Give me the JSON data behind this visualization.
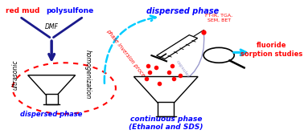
{
  "bg_color": "#ffffff",
  "red_mud_label": "red mud",
  "polysulfone_label": "polysulfone",
  "dmf_label": "DMF",
  "ultrasonic_label": "ultrasonic",
  "homogenization_label": "homogenization",
  "dispersed_phase_left_label": "dispersed phase",
  "phase_inversion_label": "phase inversion process",
  "dispersed_phase_right_label": "dispersed phase",
  "continuous_phase_label": "continuous phase\n(Ethanol and SDS)",
  "ftir_label": "FT-IR, TGA,\nSEM, BET",
  "fluoride_label": "fluoride\nsorption studies",
  "color_red": "#ff0000",
  "color_blue": "#0000ff",
  "color_cyan": "#00ccff",
  "color_dark_blue": "#1a1a8c",
  "color_black": "#000000",
  "color_purple_arrow": "#9999cc"
}
